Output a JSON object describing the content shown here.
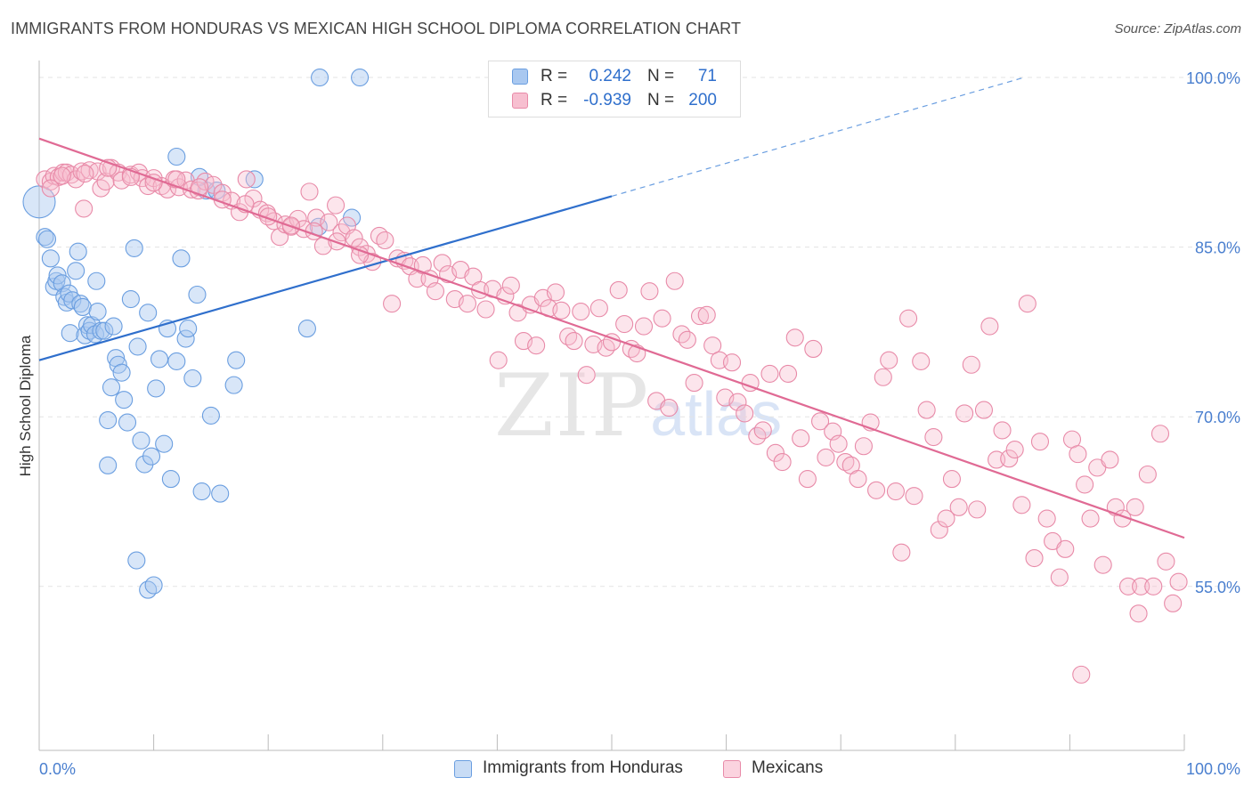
{
  "title": "IMMIGRANTS FROM HONDURAS VS MEXICAN HIGH SCHOOL DIPLOMA CORRELATION CHART",
  "source": "Source: ZipAtlas.com",
  "watermark": {
    "zip": "ZIP",
    "atlas": "atlas"
  },
  "legend": {
    "rows": [
      {
        "r_label": "R =",
        "r_value": "0.242",
        "n_label": "N =",
        "n_value": "71",
        "color": "#a9c8f0",
        "border": "#6a9ee0"
      },
      {
        "r_label": "R =",
        "r_value": "-0.939",
        "n_label": "N =",
        "n_value": "200",
        "color": "#f7bfd0",
        "border": "#e88aa8"
      }
    ]
  },
  "bottom_legend": [
    {
      "label": "Immigrants from Honduras",
      "color": "#c8dcf5",
      "border": "#6a9ee0"
    },
    {
      "label": "Mexicans",
      "color": "#fbd3df",
      "border": "#e88aa8"
    }
  ],
  "chart_data": {
    "type": "scatter",
    "ylabel": "High School Diploma",
    "xlabel": "",
    "x_tick_labels": [
      "0.0%",
      "100.0%"
    ],
    "y_tick_labels": [
      "100.0%",
      "85.0%",
      "70.0%",
      "55.0%"
    ],
    "y_ticks": [
      100,
      85,
      70,
      55
    ],
    "xlim": [
      0,
      100
    ],
    "ylim": [
      40.5,
      101.5
    ],
    "grid": true,
    "series": [
      {
        "name": "Immigrants from Honduras",
        "color": "#6a9ee0",
        "fill": "rgba(169,200,240,0.45)",
        "trend": {
          "x0": 0,
          "y0": 75.0,
          "x1": 50,
          "y1": 89.5,
          "dashed_to": {
            "x": 86,
            "y": 100
          }
        },
        "points": [
          [
            0.0,
            89.0
          ],
          [
            0.5,
            85.9
          ],
          [
            0.7,
            85.7
          ],
          [
            1.0,
            84.0
          ],
          [
            1.3,
            81.5
          ],
          [
            1.5,
            82.0
          ],
          [
            1.6,
            82.5
          ],
          [
            2.0,
            81.8
          ],
          [
            2.2,
            80.6
          ],
          [
            2.4,
            80.1
          ],
          [
            2.6,
            80.9
          ],
          [
            2.7,
            77.4
          ],
          [
            2.9,
            80.3
          ],
          [
            3.2,
            82.9
          ],
          [
            3.4,
            84.6
          ],
          [
            3.6,
            80.0
          ],
          [
            3.8,
            79.7
          ],
          [
            4.0,
            77.2
          ],
          [
            4.2,
            78.1
          ],
          [
            4.4,
            77.6
          ],
          [
            4.6,
            78.1
          ],
          [
            4.9,
            77.3
          ],
          [
            5.1,
            79.3
          ],
          [
            5.4,
            77.6
          ],
          [
            5.7,
            77.6
          ],
          [
            6.0,
            69.7
          ],
          [
            6.3,
            72.6
          ],
          [
            6.5,
            78.0
          ],
          [
            6.7,
            75.2
          ],
          [
            6.9,
            74.6
          ],
          [
            7.2,
            73.9
          ],
          [
            7.4,
            71.5
          ],
          [
            7.7,
            69.5
          ],
          [
            8.0,
            80.4
          ],
          [
            8.3,
            84.9
          ],
          [
            8.6,
            76.2
          ],
          [
            8.9,
            67.9
          ],
          [
            9.2,
            65.8
          ],
          [
            9.5,
            79.2
          ],
          [
            9.8,
            66.5
          ],
          [
            10.2,
            72.5
          ],
          [
            10.5,
            75.1
          ],
          [
            10.9,
            67.6
          ],
          [
            11.2,
            77.8
          ],
          [
            11.5,
            64.5
          ],
          [
            12.0,
            74.9
          ],
          [
            12.4,
            84.0
          ],
          [
            12.8,
            76.9
          ],
          [
            13.0,
            77.8
          ],
          [
            13.4,
            73.4
          ],
          [
            13.8,
            80.8
          ],
          [
            14.2,
            63.4
          ],
          [
            14.6,
            90.0
          ],
          [
            15.0,
            70.1
          ],
          [
            15.8,
            63.2
          ],
          [
            17.0,
            72.8
          ],
          [
            17.2,
            75.0
          ],
          [
            18.8,
            91.0
          ],
          [
            23.4,
            77.8
          ],
          [
            24.4,
            86.8
          ],
          [
            27.3,
            87.6
          ],
          [
            6.0,
            65.7
          ],
          [
            8.5,
            57.3
          ],
          [
            9.5,
            54.7
          ],
          [
            10.0,
            55.1
          ],
          [
            12.0,
            93.0
          ],
          [
            14.0,
            91.2
          ],
          [
            24.5,
            100.0
          ],
          [
            28.0,
            100.0
          ],
          [
            15.5,
            90.0
          ],
          [
            5.0,
            82.0
          ]
        ]
      },
      {
        "name": "Mexicans",
        "color": "#e88aa8",
        "fill": "rgba(247,191,208,0.40)",
        "trend": {
          "x0": 0,
          "y0": 94.6,
          "x1": 100,
          "y1": 59.3
        },
        "points": [
          [
            0.5,
            91.0
          ],
          [
            1.0,
            90.8
          ],
          [
            1.3,
            91.3
          ],
          [
            1.7,
            91.2
          ],
          [
            2.1,
            91.6
          ],
          [
            2.4,
            91.6
          ],
          [
            2.8,
            91.4
          ],
          [
            3.2,
            91.0
          ],
          [
            3.7,
            91.7
          ],
          [
            3.9,
            88.4
          ],
          [
            4.4,
            91.8
          ],
          [
            5.1,
            91.7
          ],
          [
            5.4,
            90.2
          ],
          [
            5.8,
            90.8
          ],
          [
            6.3,
            92.0
          ],
          [
            6.9,
            91.6
          ],
          [
            7.2,
            90.9
          ],
          [
            8.0,
            91.4
          ],
          [
            8.7,
            91.6
          ],
          [
            9.0,
            91.1
          ],
          [
            9.5,
            90.4
          ],
          [
            10.0,
            91.1
          ],
          [
            10.7,
            90.4
          ],
          [
            11.2,
            90.1
          ],
          [
            11.8,
            91.0
          ],
          [
            12.2,
            90.3
          ],
          [
            12.8,
            90.9
          ],
          [
            13.3,
            90.1
          ],
          [
            13.9,
            90.0
          ],
          [
            14.5,
            90.8
          ],
          [
            15.2,
            90.5
          ],
          [
            16.0,
            89.8
          ],
          [
            16.8,
            89.1
          ],
          [
            17.5,
            88.1
          ],
          [
            18.1,
            91.0
          ],
          [
            18.7,
            89.3
          ],
          [
            19.3,
            88.3
          ],
          [
            19.9,
            88.0
          ],
          [
            20.5,
            87.3
          ],
          [
            21.0,
            85.9
          ],
          [
            21.5,
            87.0
          ],
          [
            22.0,
            86.8
          ],
          [
            22.6,
            87.5
          ],
          [
            23.1,
            86.6
          ],
          [
            23.6,
            89.9
          ],
          [
            24.2,
            87.6
          ],
          [
            24.8,
            85.1
          ],
          [
            25.3,
            87.2
          ],
          [
            25.9,
            88.7
          ],
          [
            26.4,
            86.3
          ],
          [
            26.9,
            86.9
          ],
          [
            27.5,
            85.8
          ],
          [
            28.0,
            85.0
          ],
          [
            28.6,
            84.4
          ],
          [
            29.1,
            83.7
          ],
          [
            29.7,
            86.0
          ],
          [
            30.2,
            85.6
          ],
          [
            30.8,
            80.0
          ],
          [
            31.3,
            84.0
          ],
          [
            31.9,
            83.8
          ],
          [
            32.4,
            83.3
          ],
          [
            33.0,
            82.2
          ],
          [
            33.5,
            83.4
          ],
          [
            34.1,
            82.2
          ],
          [
            34.6,
            81.1
          ],
          [
            35.2,
            83.6
          ],
          [
            35.7,
            82.6
          ],
          [
            36.3,
            80.4
          ],
          [
            36.8,
            83.0
          ],
          [
            37.4,
            80.0
          ],
          [
            37.9,
            82.4
          ],
          [
            38.5,
            81.2
          ],
          [
            39.0,
            79.5
          ],
          [
            39.6,
            81.3
          ],
          [
            40.1,
            75.0
          ],
          [
            40.7,
            80.7
          ],
          [
            41.2,
            81.6
          ],
          [
            41.8,
            79.2
          ],
          [
            42.3,
            76.7
          ],
          [
            42.9,
            79.9
          ],
          [
            43.4,
            76.3
          ],
          [
            44.0,
            80.5
          ],
          [
            44.5,
            79.6
          ],
          [
            45.1,
            81.0
          ],
          [
            45.6,
            79.4
          ],
          [
            46.2,
            77.1
          ],
          [
            46.7,
            76.7
          ],
          [
            47.3,
            79.3
          ],
          [
            47.8,
            73.7
          ],
          [
            48.4,
            76.4
          ],
          [
            48.9,
            79.6
          ],
          [
            49.5,
            76.1
          ],
          [
            50.0,
            76.6
          ],
          [
            50.6,
            81.2
          ],
          [
            51.1,
            78.2
          ],
          [
            51.7,
            76.0
          ],
          [
            52.2,
            75.6
          ],
          [
            52.8,
            78.0
          ],
          [
            53.3,
            81.1
          ],
          [
            53.9,
            71.4
          ],
          [
            54.4,
            78.7
          ],
          [
            55.0,
            70.8
          ],
          [
            55.5,
            82.0
          ],
          [
            56.1,
            77.3
          ],
          [
            56.6,
            76.8
          ],
          [
            57.2,
            73.0
          ],
          [
            57.7,
            78.9
          ],
          [
            58.3,
            79.0
          ],
          [
            58.8,
            76.3
          ],
          [
            59.4,
            75.0
          ],
          [
            59.9,
            71.7
          ],
          [
            60.5,
            74.8
          ],
          [
            61.0,
            71.3
          ],
          [
            61.6,
            70.3
          ],
          [
            62.1,
            73.0
          ],
          [
            62.7,
            68.3
          ],
          [
            63.2,
            68.8
          ],
          [
            63.8,
            73.8
          ],
          [
            64.3,
            66.8
          ],
          [
            64.9,
            66.0
          ],
          [
            65.4,
            73.8
          ],
          [
            66.0,
            77.0
          ],
          [
            66.5,
            68.1
          ],
          [
            67.1,
            64.5
          ],
          [
            67.6,
            76.0
          ],
          [
            68.2,
            69.6
          ],
          [
            68.7,
            66.4
          ],
          [
            69.3,
            68.7
          ],
          [
            69.8,
            67.6
          ],
          [
            70.4,
            66.0
          ],
          [
            70.9,
            65.7
          ],
          [
            71.5,
            64.5
          ],
          [
            72.0,
            67.4
          ],
          [
            72.6,
            69.5
          ],
          [
            73.1,
            63.5
          ],
          [
            73.7,
            73.5
          ],
          [
            74.2,
            75.0
          ],
          [
            74.8,
            63.4
          ],
          [
            75.3,
            58.0
          ],
          [
            75.9,
            78.7
          ],
          [
            76.4,
            63.0
          ],
          [
            77.0,
            74.9
          ],
          [
            77.5,
            70.6
          ],
          [
            78.1,
            68.2
          ],
          [
            78.6,
            60.0
          ],
          [
            79.2,
            61.0
          ],
          [
            79.7,
            64.5
          ],
          [
            80.3,
            62.0
          ],
          [
            80.8,
            70.3
          ],
          [
            81.4,
            74.6
          ],
          [
            81.9,
            61.8
          ],
          [
            82.5,
            70.6
          ],
          [
            83.0,
            78.0
          ],
          [
            83.6,
            66.2
          ],
          [
            84.1,
            68.8
          ],
          [
            84.7,
            66.3
          ],
          [
            85.2,
            67.1
          ],
          [
            85.8,
            62.2
          ],
          [
            86.3,
            80.0
          ],
          [
            86.9,
            57.5
          ],
          [
            87.4,
            67.8
          ],
          [
            88.0,
            61.0
          ],
          [
            88.5,
            59.0
          ],
          [
            89.1,
            55.8
          ],
          [
            89.6,
            58.3
          ],
          [
            90.2,
            68.0
          ],
          [
            90.7,
            66.7
          ],
          [
            91.3,
            64.0
          ],
          [
            91.8,
            61.0
          ],
          [
            92.4,
            65.5
          ],
          [
            92.9,
            56.9
          ],
          [
            93.5,
            66.2
          ],
          [
            94.0,
            62.0
          ],
          [
            94.6,
            61.0
          ],
          [
            95.1,
            55.0
          ],
          [
            95.7,
            62.0
          ],
          [
            96.2,
            55.0
          ],
          [
            96.8,
            64.9
          ],
          [
            97.3,
            55.0
          ],
          [
            97.9,
            68.5
          ],
          [
            98.4,
            57.2
          ],
          [
            99.0,
            53.5
          ],
          [
            99.5,
            55.4
          ],
          [
            91.0,
            47.2
          ],
          [
            96.0,
            52.6
          ],
          [
            1.0,
            90.2
          ],
          [
            2.0,
            91.3
          ],
          [
            4.0,
            91.5
          ],
          [
            6.0,
            92.0
          ],
          [
            8.0,
            91.2
          ],
          [
            10.0,
            90.7
          ],
          [
            12.0,
            91.0
          ],
          [
            14.0,
            90.3
          ],
          [
            16.0,
            89.2
          ],
          [
            18.0,
            88.8
          ],
          [
            20.0,
            87.7
          ],
          [
            22.0,
            86.9
          ],
          [
            24.0,
            86.4
          ],
          [
            26.0,
            85.5
          ],
          [
            28.0,
            84.3
          ]
        ]
      }
    ]
  }
}
